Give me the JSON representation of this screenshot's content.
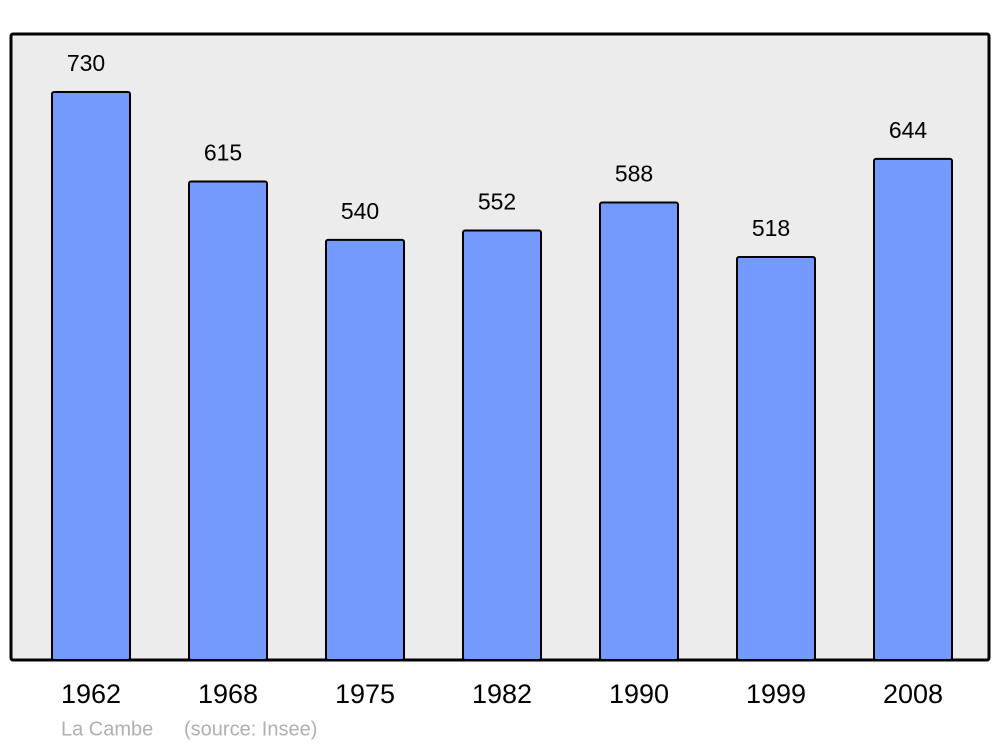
{
  "chart_data": {
    "type": "bar",
    "categories": [
      "1962",
      "1968",
      "1975",
      "1982",
      "1990",
      "1999",
      "2008"
    ],
    "values": [
      730,
      615,
      540,
      552,
      588,
      518,
      644
    ],
    "color": "#7499ff",
    "place": "La Cambe",
    "source": "(source: Insee)"
  }
}
